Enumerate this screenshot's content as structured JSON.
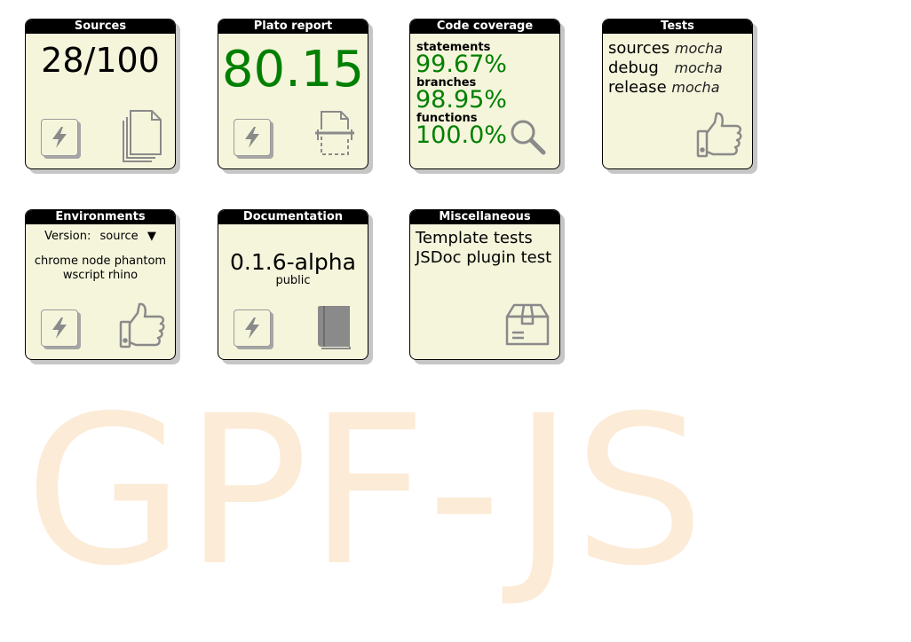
{
  "watermark": "GPF-JS",
  "tiles": {
    "sources": {
      "title": "Sources",
      "count": "28/100",
      "icons": [
        "bolt-icon",
        "documents-icon"
      ]
    },
    "plato": {
      "title": "Plato report",
      "score": "80.15",
      "score_color": "#008000",
      "icons": [
        "bolt-icon",
        "scan-document-icon"
      ]
    },
    "coverage": {
      "title": "Code coverage",
      "statements_label": "statements",
      "statements_value": "99.67%",
      "branches_label": "branches",
      "branches_value": "98.95%",
      "functions_label": "functions",
      "functions_value": "100.0%",
      "value_color": "#008000",
      "icons": [
        "magnifier-icon"
      ]
    },
    "tests": {
      "title": "Tests",
      "rows": [
        {
          "target": "sources",
          "runner": "mocha"
        },
        {
          "target": "debug",
          "runner": "mocha"
        },
        {
          "target": "release",
          "runner": "mocha"
        }
      ],
      "icons": [
        "thumbs-up-icon"
      ]
    },
    "environments": {
      "title": "Environments",
      "version_label": "Version:",
      "version_value": "source",
      "items": [
        "chrome",
        "node",
        "phantom",
        "wscript",
        "rhino"
      ],
      "icons": [
        "bolt-icon",
        "thumbs-up-icon"
      ]
    },
    "documentation": {
      "title": "Documentation",
      "version": "0.1.6-alpha",
      "visibility": "public",
      "icons": [
        "bolt-icon",
        "book-icon"
      ]
    },
    "misc": {
      "title": "Miscellaneous",
      "items": [
        "Template tests",
        "JSDoc plugin test"
      ],
      "icons": [
        "package-icon"
      ]
    }
  },
  "colors": {
    "tile_bg": "#f5f5dc",
    "title_bg": "#000000",
    "accent_green": "#008000",
    "watermark": "#fcebd6",
    "icon_gray": "#8a8a8a"
  }
}
